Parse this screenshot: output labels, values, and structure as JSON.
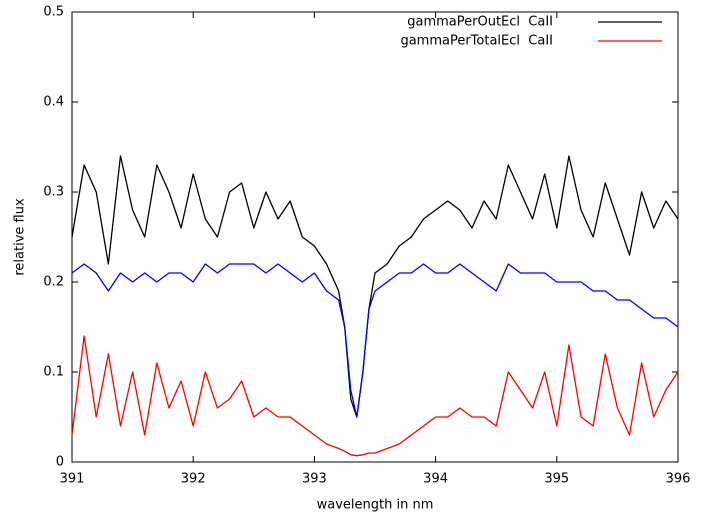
{
  "chart_data": {
    "type": "line",
    "xlabel": "wavelength in nm",
    "ylabel": "relative flux",
    "x": [
      391.0,
      391.1,
      391.2,
      391.3,
      391.4,
      391.5,
      391.6,
      391.7,
      391.8,
      391.9,
      392.0,
      392.1,
      392.2,
      392.3,
      392.4,
      392.5,
      392.6,
      392.7,
      392.8,
      392.9,
      393.0,
      393.1,
      393.2,
      393.25,
      393.3,
      393.35,
      393.4,
      393.45,
      393.5,
      393.6,
      393.7,
      393.8,
      393.9,
      394.0,
      394.1,
      394.2,
      394.3,
      394.4,
      394.5,
      394.6,
      394.7,
      394.8,
      394.9,
      395.0,
      395.1,
      395.2,
      395.3,
      395.4,
      395.5,
      395.6,
      395.7,
      395.8,
      395.9,
      396.0
    ],
    "series": [
      {
        "name": "gammaPerOutEcl  CaII",
        "color": "#000000",
        "values": [
          0.25,
          0.33,
          0.3,
          0.22,
          0.34,
          0.28,
          0.25,
          0.33,
          0.3,
          0.26,
          0.32,
          0.27,
          0.25,
          0.3,
          0.31,
          0.26,
          0.3,
          0.27,
          0.29,
          0.25,
          0.24,
          0.22,
          0.19,
          0.15,
          0.07,
          0.05,
          0.1,
          0.17,
          0.21,
          0.22,
          0.24,
          0.25,
          0.27,
          0.28,
          0.29,
          0.28,
          0.26,
          0.29,
          0.27,
          0.33,
          0.3,
          0.27,
          0.32,
          0.26,
          0.34,
          0.28,
          0.25,
          0.31,
          0.27,
          0.23,
          0.3,
          0.26,
          0.29,
          0.27
        ]
      },
      {
        "color": "#0000ff",
        "values": [
          0.21,
          0.22,
          0.21,
          0.19,
          0.21,
          0.2,
          0.21,
          0.2,
          0.21,
          0.21,
          0.2,
          0.22,
          0.21,
          0.22,
          0.22,
          0.22,
          0.21,
          0.22,
          0.21,
          0.2,
          0.21,
          0.19,
          0.18,
          0.15,
          0.08,
          0.05,
          0.1,
          0.17,
          0.19,
          0.2,
          0.21,
          0.21,
          0.22,
          0.21,
          0.21,
          0.22,
          0.21,
          0.2,
          0.19,
          0.22,
          0.21,
          0.21,
          0.21,
          0.2,
          0.2,
          0.2,
          0.19,
          0.19,
          0.18,
          0.18,
          0.17,
          0.16,
          0.16,
          0.15
        ]
      },
      {
        "name": "gammaPerTotalEcl  CaII",
        "color": "#ff0000",
        "values": [
          0.03,
          0.14,
          0.05,
          0.12,
          0.04,
          0.1,
          0.03,
          0.11,
          0.06,
          0.09,
          0.04,
          0.1,
          0.06,
          0.07,
          0.09,
          0.05,
          0.06,
          0.05,
          0.05,
          0.04,
          0.03,
          0.02,
          0.015,
          0.012,
          0.008,
          0.007,
          0.008,
          0.01,
          0.01,
          0.015,
          0.02,
          0.03,
          0.04,
          0.05,
          0.05,
          0.06,
          0.05,
          0.05,
          0.04,
          0.1,
          0.08,
          0.06,
          0.1,
          0.04,
          0.13,
          0.05,
          0.04,
          0.12,
          0.06,
          0.03,
          0.11,
          0.05,
          0.08,
          0.1
        ]
      }
    ],
    "xlim": [
      391,
      396
    ],
    "xticks": [
      391,
      392,
      393,
      394,
      395,
      396
    ],
    "ylim": [
      0,
      0.5
    ],
    "yticks": [
      0,
      0.1,
      0.2,
      0.3,
      0.4,
      0.5
    ],
    "legend": "upper right"
  }
}
